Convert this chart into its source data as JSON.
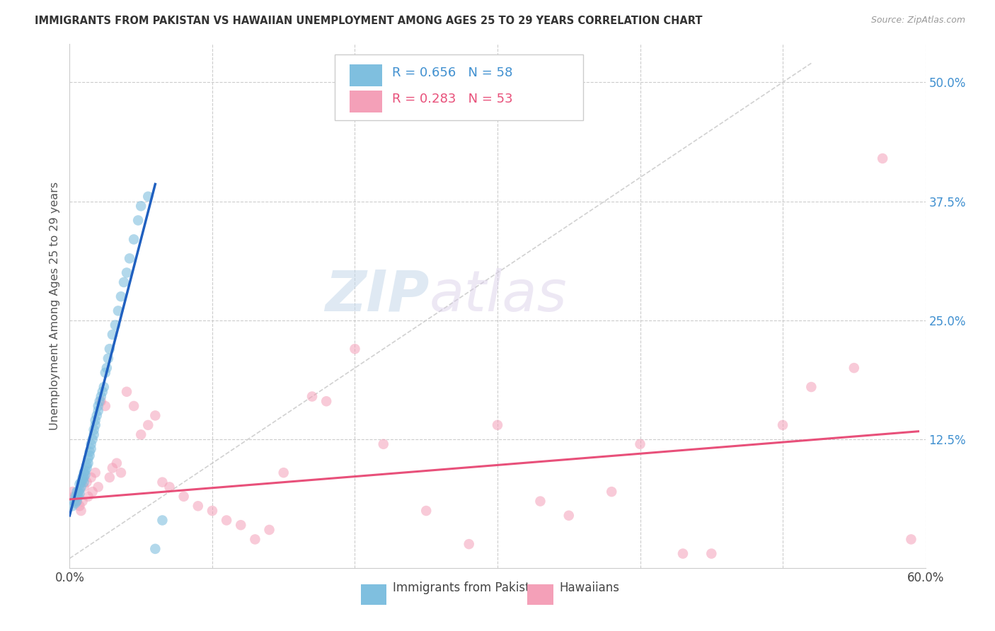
{
  "title": "IMMIGRANTS FROM PAKISTAN VS HAWAIIAN UNEMPLOYMENT AMONG AGES 25 TO 29 YEARS CORRELATION CHART",
  "source": "Source: ZipAtlas.com",
  "ylabel": "Unemployment Among Ages 25 to 29 years",
  "xlim": [
    0.0,
    0.6
  ],
  "ylim": [
    -0.01,
    0.54
  ],
  "color_blue": "#7fbfdf",
  "color_pink": "#f4a0b8",
  "color_blue_line": "#2060c0",
  "color_pink_line": "#e8507a",
  "color_label_blue": "#4090d0",
  "color_label_pink": "#e8507a",
  "watermark_zip": "ZIP",
  "watermark_atlas": "atlas",
  "blue_scatter_x": [
    0.002,
    0.003,
    0.004,
    0.004,
    0.005,
    0.005,
    0.005,
    0.006,
    0.006,
    0.007,
    0.007,
    0.007,
    0.008,
    0.008,
    0.009,
    0.009,
    0.01,
    0.01,
    0.01,
    0.011,
    0.011,
    0.012,
    0.012,
    0.013,
    0.013,
    0.014,
    0.014,
    0.015,
    0.015,
    0.016,
    0.017,
    0.017,
    0.018,
    0.018,
    0.019,
    0.02,
    0.02,
    0.021,
    0.022,
    0.023,
    0.024,
    0.025,
    0.026,
    0.027,
    0.028,
    0.03,
    0.032,
    0.034,
    0.036,
    0.038,
    0.04,
    0.042,
    0.045,
    0.048,
    0.05,
    0.055,
    0.06,
    0.065
  ],
  "blue_scatter_y": [
    0.055,
    0.06,
    0.058,
    0.065,
    0.06,
    0.065,
    0.07,
    0.065,
    0.07,
    0.068,
    0.072,
    0.078,
    0.075,
    0.08,
    0.082,
    0.085,
    0.08,
    0.085,
    0.09,
    0.088,
    0.092,
    0.095,
    0.098,
    0.1,
    0.105,
    0.108,
    0.112,
    0.115,
    0.12,
    0.125,
    0.13,
    0.135,
    0.14,
    0.145,
    0.15,
    0.155,
    0.16,
    0.165,
    0.17,
    0.175,
    0.18,
    0.195,
    0.2,
    0.21,
    0.22,
    0.235,
    0.245,
    0.26,
    0.275,
    0.29,
    0.3,
    0.315,
    0.335,
    0.355,
    0.37,
    0.38,
    0.01,
    0.04
  ],
  "pink_scatter_x": [
    0.002,
    0.003,
    0.005,
    0.006,
    0.007,
    0.008,
    0.009,
    0.01,
    0.012,
    0.013,
    0.015,
    0.016,
    0.018,
    0.02,
    0.022,
    0.025,
    0.028,
    0.03,
    0.033,
    0.036,
    0.04,
    0.045,
    0.05,
    0.055,
    0.06,
    0.065,
    0.07,
    0.08,
    0.09,
    0.1,
    0.11,
    0.12,
    0.13,
    0.14,
    0.15,
    0.17,
    0.18,
    0.2,
    0.22,
    0.25,
    0.28,
    0.3,
    0.33,
    0.35,
    0.38,
    0.4,
    0.43,
    0.45,
    0.5,
    0.52,
    0.55,
    0.57,
    0.59
  ],
  "pink_scatter_y": [
    0.07,
    0.065,
    0.06,
    0.068,
    0.055,
    0.05,
    0.06,
    0.075,
    0.08,
    0.065,
    0.085,
    0.07,
    0.09,
    0.075,
    0.165,
    0.16,
    0.085,
    0.095,
    0.1,
    0.09,
    0.175,
    0.16,
    0.13,
    0.14,
    0.15,
    0.08,
    0.075,
    0.065,
    0.055,
    0.05,
    0.04,
    0.035,
    0.02,
    0.03,
    0.09,
    0.17,
    0.165,
    0.22,
    0.12,
    0.05,
    0.015,
    0.14,
    0.06,
    0.045,
    0.07,
    0.12,
    0.005,
    0.005,
    0.14,
    0.18,
    0.2,
    0.42,
    0.02
  ],
  "blue_line_x": [
    0.002,
    0.058
  ],
  "blue_line_y_intercept": 0.045,
  "blue_line_slope": 5.8,
  "pink_line_x": [
    0.002,
    0.595
  ],
  "pink_line_y_intercept": 0.062,
  "pink_line_slope": 0.12
}
